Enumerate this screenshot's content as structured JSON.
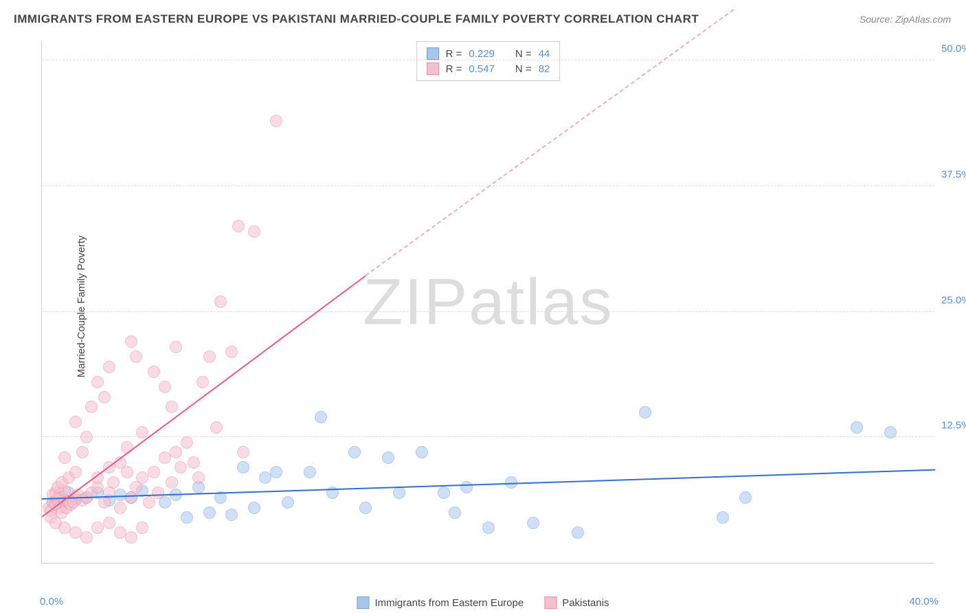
{
  "title": "IMMIGRANTS FROM EASTERN EUROPE VS PAKISTANI MARRIED-COUPLE FAMILY POVERTY CORRELATION CHART",
  "source": "Source: ZipAtlas.com",
  "watermark": "ZIPatlas",
  "ylabel": "Married-Couple Family Poverty",
  "chart": {
    "type": "scatter",
    "xlim": [
      0,
      40
    ],
    "ylim": [
      0,
      52
    ],
    "yticks": [
      {
        "value": 12.5,
        "label": "12.5%"
      },
      {
        "value": 25.0,
        "label": "25.0%"
      },
      {
        "value": 37.5,
        "label": "37.5%"
      },
      {
        "value": 50.0,
        "label": "50.0%"
      }
    ],
    "xtick_left": "0.0%",
    "xtick_right": "40.0%",
    "background_color": "#ffffff",
    "grid_color": "#dddddd",
    "axis_color": "#cccccc",
    "tick_color": "#5a8fd6",
    "marker_radius": 9,
    "marker_opacity": 0.55,
    "series": [
      {
        "name": "Immigrants from Eastern Europe",
        "color_fill": "#a8c6ed",
        "color_stroke": "#6fa0df",
        "trend_color": "#2f6fd0",
        "R": "0.229",
        "N": "44",
        "trend": {
          "x0": 0,
          "y0": 6.3,
          "x1": 40,
          "y1": 9.2,
          "dashed_after_x": 40
        },
        "points": [
          [
            0.5,
            6.0
          ],
          [
            0.8,
            6.5
          ],
          [
            0.6,
            5.8
          ],
          [
            1.0,
            6.2
          ],
          [
            1.2,
            7.0
          ],
          [
            1.5,
            6.3
          ],
          [
            2.0,
            6.5
          ],
          [
            2.5,
            7.0
          ],
          [
            3.0,
            6.2
          ],
          [
            3.5,
            6.8
          ],
          [
            4.0,
            6.5
          ],
          [
            4.5,
            7.2
          ],
          [
            5.5,
            6.0
          ],
          [
            6.0,
            6.8
          ],
          [
            6.5,
            4.5
          ],
          [
            7.0,
            7.5
          ],
          [
            7.5,
            5.0
          ],
          [
            8.0,
            6.5
          ],
          [
            8.5,
            4.8
          ],
          [
            9.0,
            9.5
          ],
          [
            9.5,
            5.5
          ],
          [
            10.0,
            8.5
          ],
          [
            10.5,
            9.0
          ],
          [
            11.0,
            6.0
          ],
          [
            12.0,
            9.0
          ],
          [
            12.5,
            14.5
          ],
          [
            13.0,
            7.0
          ],
          [
            14.0,
            11.0
          ],
          [
            14.5,
            5.5
          ],
          [
            15.5,
            10.5
          ],
          [
            16.0,
            7.0
          ],
          [
            17.0,
            11.0
          ],
          [
            18.0,
            7.0
          ],
          [
            18.5,
            5.0
          ],
          [
            19.0,
            7.5
          ],
          [
            20.0,
            3.5
          ],
          [
            21.0,
            8.0
          ],
          [
            22.0,
            4.0
          ],
          [
            24.0,
            3.0
          ],
          [
            27.0,
            15.0
          ],
          [
            30.5,
            4.5
          ],
          [
            31.5,
            6.5
          ],
          [
            36.5,
            13.5
          ],
          [
            38.0,
            13.0
          ]
        ]
      },
      {
        "name": "Pakistanis",
        "color_fill": "#f5c0cd",
        "color_stroke": "#ec8ba5",
        "trend_color": "#e85a86",
        "R": "0.547",
        "N": "82",
        "trend": {
          "x0": 0,
          "y0": 4.5,
          "x1": 14.5,
          "y1": 28.5,
          "dashed_after_x": 14.5,
          "dash_x1": 31,
          "dash_y1": 55
        },
        "points": [
          [
            0.3,
            5.5
          ],
          [
            0.5,
            6.0
          ],
          [
            0.4,
            5.2
          ],
          [
            0.6,
            5.8
          ],
          [
            0.7,
            6.3
          ],
          [
            0.8,
            5.5
          ],
          [
            0.5,
            6.8
          ],
          [
            0.9,
            5.0
          ],
          [
            1.0,
            6.2
          ],
          [
            0.6,
            7.0
          ],
          [
            1.1,
            5.5
          ],
          [
            0.8,
            6.8
          ],
          [
            1.2,
            6.0
          ],
          [
            1.0,
            7.2
          ],
          [
            1.3,
            5.8
          ],
          [
            1.5,
            6.5
          ],
          [
            0.7,
            7.5
          ],
          [
            1.4,
            6.0
          ],
          [
            1.6,
            6.8
          ],
          [
            0.9,
            8.0
          ],
          [
            1.8,
            6.2
          ],
          [
            1.2,
            8.5
          ],
          [
            2.0,
            6.5
          ],
          [
            1.5,
            9.0
          ],
          [
            2.2,
            7.0
          ],
          [
            1.0,
            10.5
          ],
          [
            2.5,
            7.5
          ],
          [
            1.8,
            11.0
          ],
          [
            2.8,
            6.0
          ],
          [
            2.0,
            12.5
          ],
          [
            3.0,
            7.0
          ],
          [
            1.5,
            14.0
          ],
          [
            3.2,
            8.0
          ],
          [
            2.5,
            8.5
          ],
          [
            3.5,
            5.5
          ],
          [
            2.2,
            15.5
          ],
          [
            3.8,
            9.0
          ],
          [
            2.8,
            16.5
          ],
          [
            4.0,
            6.5
          ],
          [
            3.0,
            9.5
          ],
          [
            4.2,
            7.5
          ],
          [
            2.5,
            18.0
          ],
          [
            4.5,
            8.5
          ],
          [
            3.5,
            10.0
          ],
          [
            4.8,
            6.0
          ],
          [
            3.0,
            19.5
          ],
          [
            5.0,
            9.0
          ],
          [
            3.8,
            11.5
          ],
          [
            5.2,
            7.0
          ],
          [
            4.0,
            22.0
          ],
          [
            5.5,
            10.5
          ],
          [
            4.5,
            13.0
          ],
          [
            5.8,
            8.0
          ],
          [
            4.2,
            20.5
          ],
          [
            6.0,
            11.0
          ],
          [
            5.0,
            19.0
          ],
          [
            6.2,
            9.5
          ],
          [
            5.5,
            17.5
          ],
          [
            6.5,
            12.0
          ],
          [
            5.8,
            15.5
          ],
          [
            6.8,
            10.0
          ],
          [
            6.0,
            21.5
          ],
          [
            7.0,
            8.5
          ],
          [
            7.2,
            18.0
          ],
          [
            7.5,
            20.5
          ],
          [
            7.8,
            13.5
          ],
          [
            8.0,
            26.0
          ],
          [
            8.5,
            21.0
          ],
          [
            8.8,
            33.5
          ],
          [
            9.0,
            11.0
          ],
          [
            9.5,
            33.0
          ],
          [
            10.5,
            44.0
          ],
          [
            0.4,
            4.5
          ],
          [
            0.6,
            4.0
          ],
          [
            1.0,
            3.5
          ],
          [
            1.5,
            3.0
          ],
          [
            2.0,
            2.5
          ],
          [
            2.5,
            3.5
          ],
          [
            3.0,
            4.0
          ],
          [
            3.5,
            3.0
          ],
          [
            4.0,
            2.5
          ],
          [
            4.5,
            3.5
          ]
        ]
      }
    ]
  },
  "stats_legend": {
    "rows": [
      {
        "swatch_fill": "#a8c6ed",
        "swatch_stroke": "#6fa0df",
        "r_label": "R =",
        "r_val": "0.229",
        "n_label": "N =",
        "n_val": "44"
      },
      {
        "swatch_fill": "#f5c0cd",
        "swatch_stroke": "#ec8ba5",
        "r_label": "R =",
        "r_val": "0.547",
        "n_label": "N =",
        "n_val": "82"
      }
    ]
  },
  "bottom_legend": {
    "items": [
      {
        "swatch_fill": "#a8c6ed",
        "swatch_stroke": "#6fa0df",
        "label": "Immigrants from Eastern Europe"
      },
      {
        "swatch_fill": "#f5c0cd",
        "swatch_stroke": "#ec8ba5",
        "label": "Pakistanis"
      }
    ]
  }
}
